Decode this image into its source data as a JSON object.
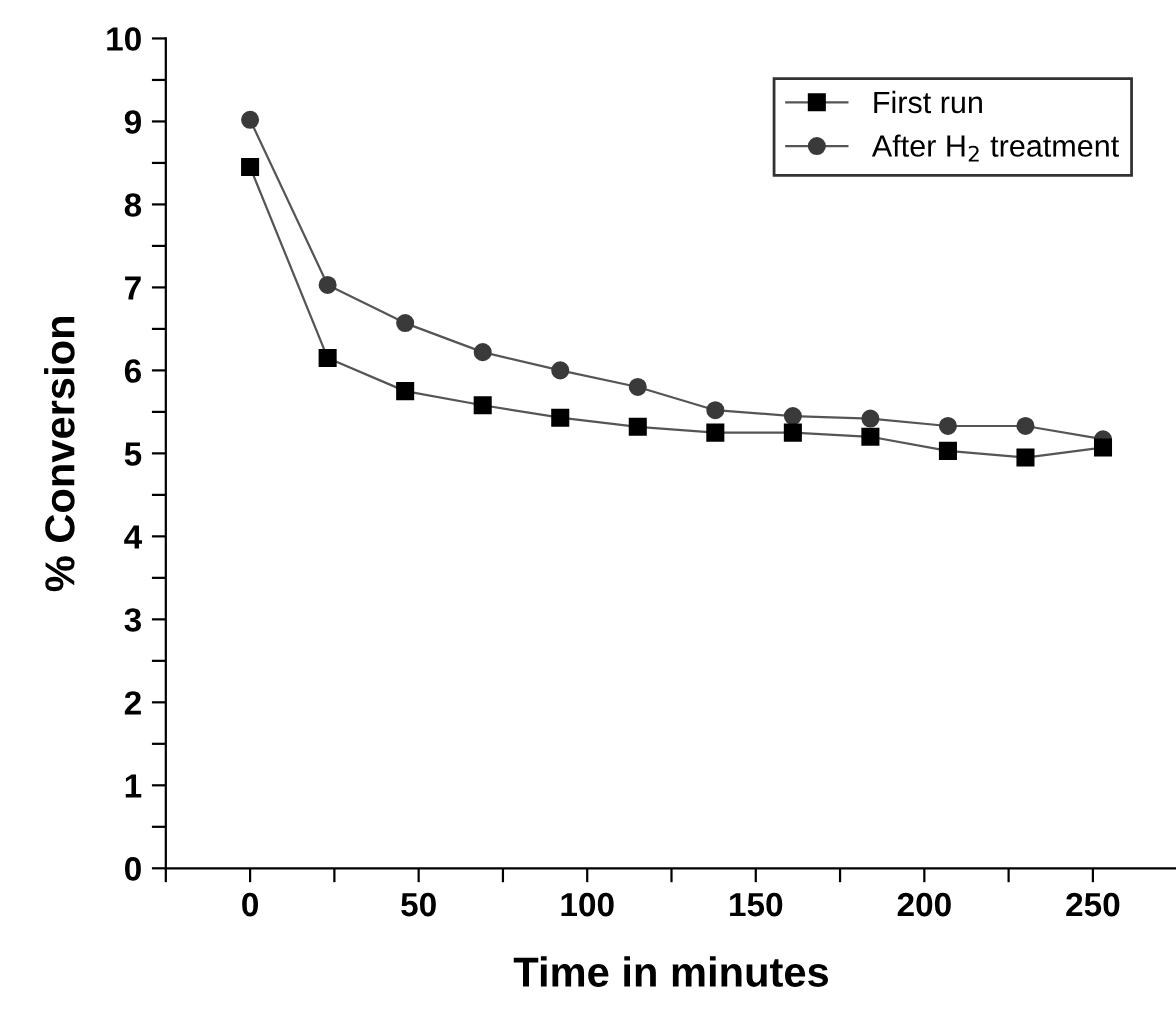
{
  "chart_data": {
    "type": "line",
    "xlabel": "Time in minutes",
    "ylabel": "% Conversion",
    "x": [
      0,
      23,
      46,
      69,
      92,
      115,
      138,
      161,
      184,
      207,
      230,
      253
    ],
    "series": [
      {
        "name": "First run",
        "color": "#000000",
        "marker": "square",
        "values": [
          8.45,
          6.15,
          5.75,
          5.58,
          5.43,
          5.32,
          5.25,
          5.25,
          5.2,
          5.03,
          4.95,
          5.07
        ]
      },
      {
        "name": "After H$_{2}$ treatment",
        "color": "#3a3a3a",
        "marker": "circle",
        "values": [
          9.02,
          7.03,
          6.57,
          6.22,
          6.0,
          5.8,
          5.52,
          5.45,
          5.42,
          5.33,
          5.33,
          5.17
        ]
      }
    ],
    "xlim": [
      -25,
      275
    ],
    "ylim": [
      0,
      10
    ],
    "xticks": [
      {
        "value": -25,
        "label": null
      },
      0,
      {
        "value": 25,
        "label": null
      },
      50,
      {
        "value": 75,
        "label": null
      },
      100,
      {
        "value": 125,
        "label": null
      },
      150,
      {
        "value": 175,
        "label": null
      },
      200,
      {
        "value": 225,
        "label": null
      },
      250
    ],
    "yticks": [
      0,
      {
        "value": 0.5,
        "label": null
      },
      1,
      {
        "value": 1.5,
        "label": null
      },
      2,
      {
        "value": 2.5,
        "label": null
      },
      3,
      {
        "value": 3.5,
        "label": null
      },
      4,
      {
        "value": 4.5,
        "label": null
      },
      5,
      {
        "value": 5.5,
        "label": null
      },
      6,
      {
        "value": 6.5,
        "label": null
      },
      7,
      {
        "value": 7.5,
        "label": null
      },
      8,
      {
        "value": 8.5,
        "label": null
      },
      9,
      {
        "value": 9.5,
        "label": null
      },
      10
    ],
    "grid": false,
    "legend": "top right",
    "line_style": "solid"
  }
}
